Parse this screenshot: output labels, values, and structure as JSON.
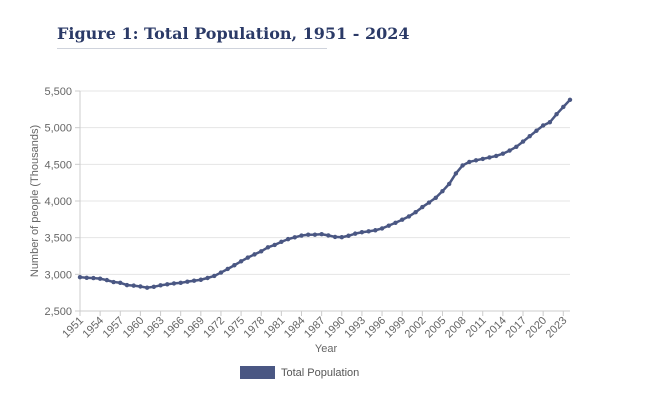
{
  "figure_title": "Figure 1: Total Population, 1951 - 2024",
  "chart_data": {
    "type": "line",
    "title": "Figure 1: Total Population, 1951 - 2024",
    "xlabel": "Year",
    "ylabel": "Number of people (Thousands)",
    "ylim": [
      2500,
      5500
    ],
    "y_ticks": [
      "2,500",
      "3,000",
      "3,500",
      "4,000",
      "4,500",
      "5,000",
      "5,500"
    ],
    "x_tick_labels": [
      "1951",
      "1954",
      "1957",
      "1960",
      "1963",
      "1966",
      "1969",
      "1972",
      "1975",
      "1978",
      "1981",
      "1984",
      "1987",
      "1990",
      "1993",
      "1996",
      "1999",
      "2002",
      "2005",
      "2008",
      "2011",
      "2014",
      "2017",
      "2020",
      "2023"
    ],
    "grid": true,
    "legend_position": "bottom",
    "series_color": "#4a5783",
    "series": [
      {
        "name": "Total Population",
        "x": [
          1951,
          1952,
          1953,
          1954,
          1955,
          1956,
          1957,
          1958,
          1959,
          1960,
          1961,
          1962,
          1963,
          1964,
          1965,
          1966,
          1967,
          1968,
          1969,
          1970,
          1971,
          1972,
          1973,
          1974,
          1975,
          1976,
          1977,
          1978,
          1979,
          1980,
          1981,
          1982,
          1983,
          1984,
          1985,
          1986,
          1987,
          1988,
          1989,
          1990,
          1991,
          1992,
          1993,
          1994,
          1995,
          1996,
          1997,
          1998,
          1999,
          2000,
          2001,
          2002,
          2003,
          2004,
          2005,
          2006,
          2007,
          2008,
          2009,
          2010,
          2011,
          2012,
          2013,
          2014,
          2015,
          2016,
          2017,
          2018,
          2019,
          2020,
          2021,
          2022,
          2023,
          2024
        ],
        "values": [
          2961,
          2953,
          2949,
          2941,
          2921,
          2895,
          2885,
          2853,
          2846,
          2834,
          2818,
          2830,
          2850,
          2864,
          2876,
          2884,
          2900,
          2913,
          2926,
          2950,
          2978,
          3024,
          3073,
          3124,
          3177,
          3228,
          3272,
          3314,
          3368,
          3401,
          3443,
          3480,
          3505,
          3529,
          3540,
          3541,
          3547,
          3531,
          3510,
          3506,
          3526,
          3555,
          3574,
          3586,
          3601,
          3626,
          3664,
          3703,
          3745,
          3790,
          3847,
          3917,
          3979,
          4044,
          4134,
          4233,
          4376,
          4485,
          4533,
          4555,
          4574,
          4594,
          4614,
          4645,
          4688,
          4739,
          4810,
          4884,
          4958,
          5030,
          5074,
          5184,
          5282,
          5380
        ]
      }
    ]
  }
}
